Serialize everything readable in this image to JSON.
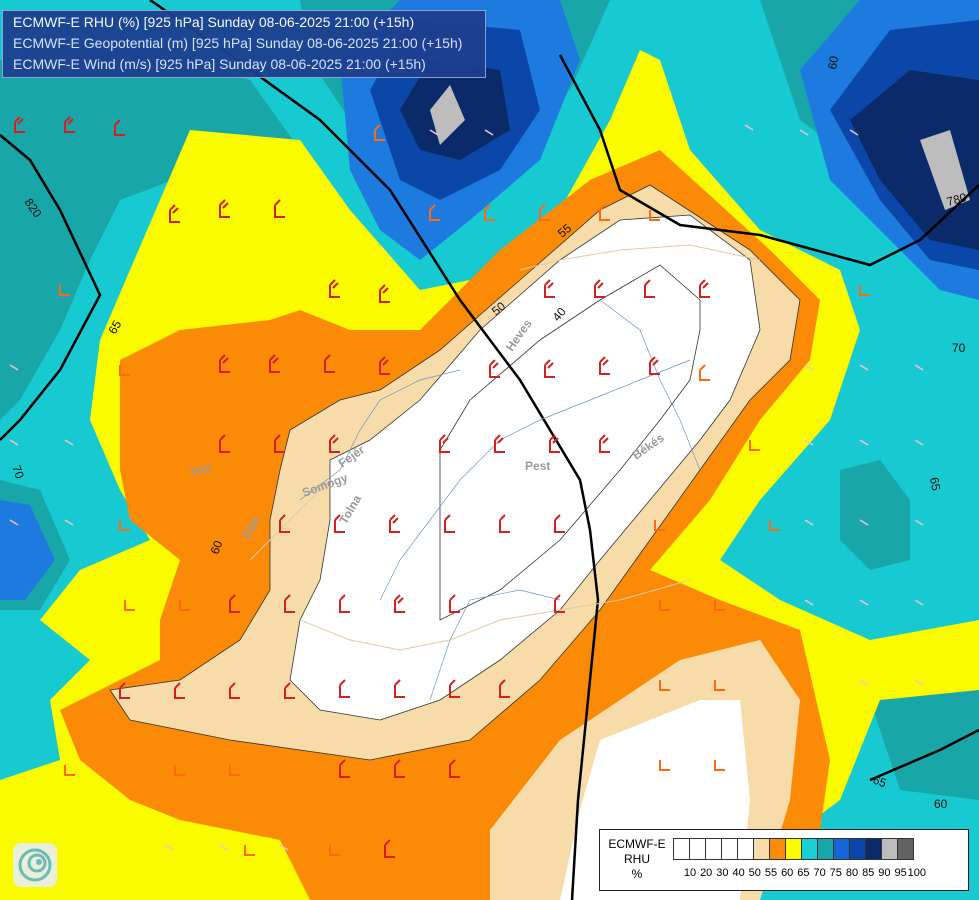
{
  "titles": {
    "line1": "ECMWF-E RHU (%) [925 hPa] Sunday 08-06-2025 21:00 (+15h)",
    "line2": "ECMWF-E Geopotential (m) [925 hPa] Sunday 08-06-2025 21:00 (+15h)",
    "line3": "ECMWF-E Wind (m/s) [925 hPa] Sunday 08-06-2025 21:00 (+15h)"
  },
  "legend": {
    "line1": "ECMWF-E",
    "line2": "RHU",
    "unit": "%",
    "ticks": [
      "10",
      "20",
      "30",
      "40",
      "50",
      "55",
      "60",
      "65",
      "70",
      "75",
      "80",
      "85",
      "90",
      "95",
      "100"
    ],
    "colors": [
      "#ffffff",
      "#ffffff",
      "#ffffff",
      "#ffffff",
      "#ffffff",
      "#f7dca9",
      "#fb8a06",
      "#fbfb00",
      "#19cdd4",
      "#18a6a9",
      "#1565d8",
      "#0a47a8",
      "#0a2a6a",
      "#bdbdbd",
      "#636363"
    ]
  },
  "contour_labels": {
    "geo_820": "820",
    "geo_780": "780",
    "rh_65_left": "65",
    "rh_70_left": "70",
    "rh_60_left": "60",
    "rh_55": "55",
    "rh_50": "50",
    "rh_40": "40",
    "rh_70_right": "70",
    "rh_65_right": "65",
    "rh_60_bottom": "60",
    "rh_60_top": "60",
    "rh_65_bottom": "65"
  },
  "places": {
    "pest": "Pest",
    "fejer": "Fejér",
    "heves": "Heves",
    "bekes": "Békés",
    "somogy": "Somogy",
    "vas": "Vas",
    "zala": "Zala",
    "tolna": "Tolna"
  }
}
